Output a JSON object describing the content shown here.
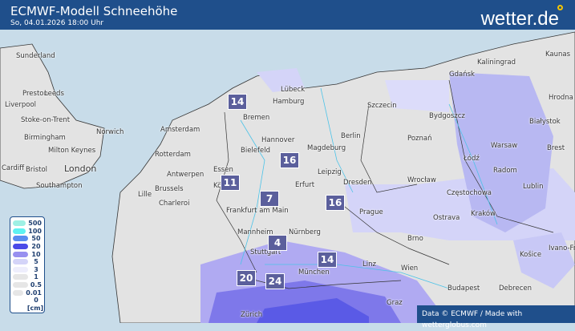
{
  "header": {
    "title": "ECMWF-Modell Schneehöhe",
    "subtitle": "So, 04.01.2026 18:00 Uhr",
    "logo": "wetter.de"
  },
  "legend": {
    "unit": "[cm]",
    "items": [
      {
        "label": "500",
        "color": "#9ef0e4"
      },
      {
        "label": "100",
        "color": "#5ef2f2"
      },
      {
        "label": "50",
        "color": "#5a8cf0"
      },
      {
        "label": "20",
        "color": "#4a4ae8"
      },
      {
        "label": "10",
        "color": "#9890f0"
      },
      {
        "label": "5",
        "color": "#d4d4f8"
      },
      {
        "label": "3",
        "color": "#eeeefc"
      },
      {
        "label": "1",
        "color": "#e6e6e6"
      },
      {
        "label": "0.5",
        "color": "#e6e6e6"
      },
      {
        "label": "0.01",
        "color": "#e6e6e6"
      },
      {
        "label": "0",
        "color": "#ffffff"
      }
    ]
  },
  "cities": [
    "Sunderland",
    "Preston",
    "Leeds",
    "Liverpool",
    "Stoke-on-Trent",
    "Norwich",
    "Birmingham",
    "Milton Keynes",
    "London",
    "Cardiff",
    "Bristol",
    "Southampton",
    "Amsterdam",
    "Rotterdam",
    "Antwerpen",
    "Brussels",
    "Lille",
    "Charleroi",
    "Essen",
    "Köln",
    "Bielefeld",
    "Bremen",
    "Hannover",
    "Hamburg",
    "Lübeck",
    "Magdeburg",
    "Berlin",
    "Szczecin",
    "Gdańsk",
    "Kaliningrad",
    "Kaunas",
    "Hrodna",
    "Białystok",
    "Bydgoszcz",
    "Poznań",
    "Warsaw",
    "Łódź",
    "Radom",
    "Lublin",
    "Brest",
    "Wrocław",
    "Częstochowa",
    "Kraków",
    "Ostrava",
    "Leipzig",
    "Dresden",
    "Erfurt",
    "Prague",
    "Frankfurt am Main",
    "Mannheim",
    "Nürnberg",
    "Stuttgart",
    "Brno",
    "Wien",
    "Linz",
    "München",
    "Košice",
    "Budapest",
    "Debrecen",
    "Graz",
    "Zürich",
    "Ivano-Frankivsk"
  ],
  "values": [
    "14",
    "16",
    "11",
    "7",
    "16",
    "4",
    "14",
    "20",
    "24"
  ],
  "credit": "Data © ECMWF / Made with wetterglobus.com"
}
